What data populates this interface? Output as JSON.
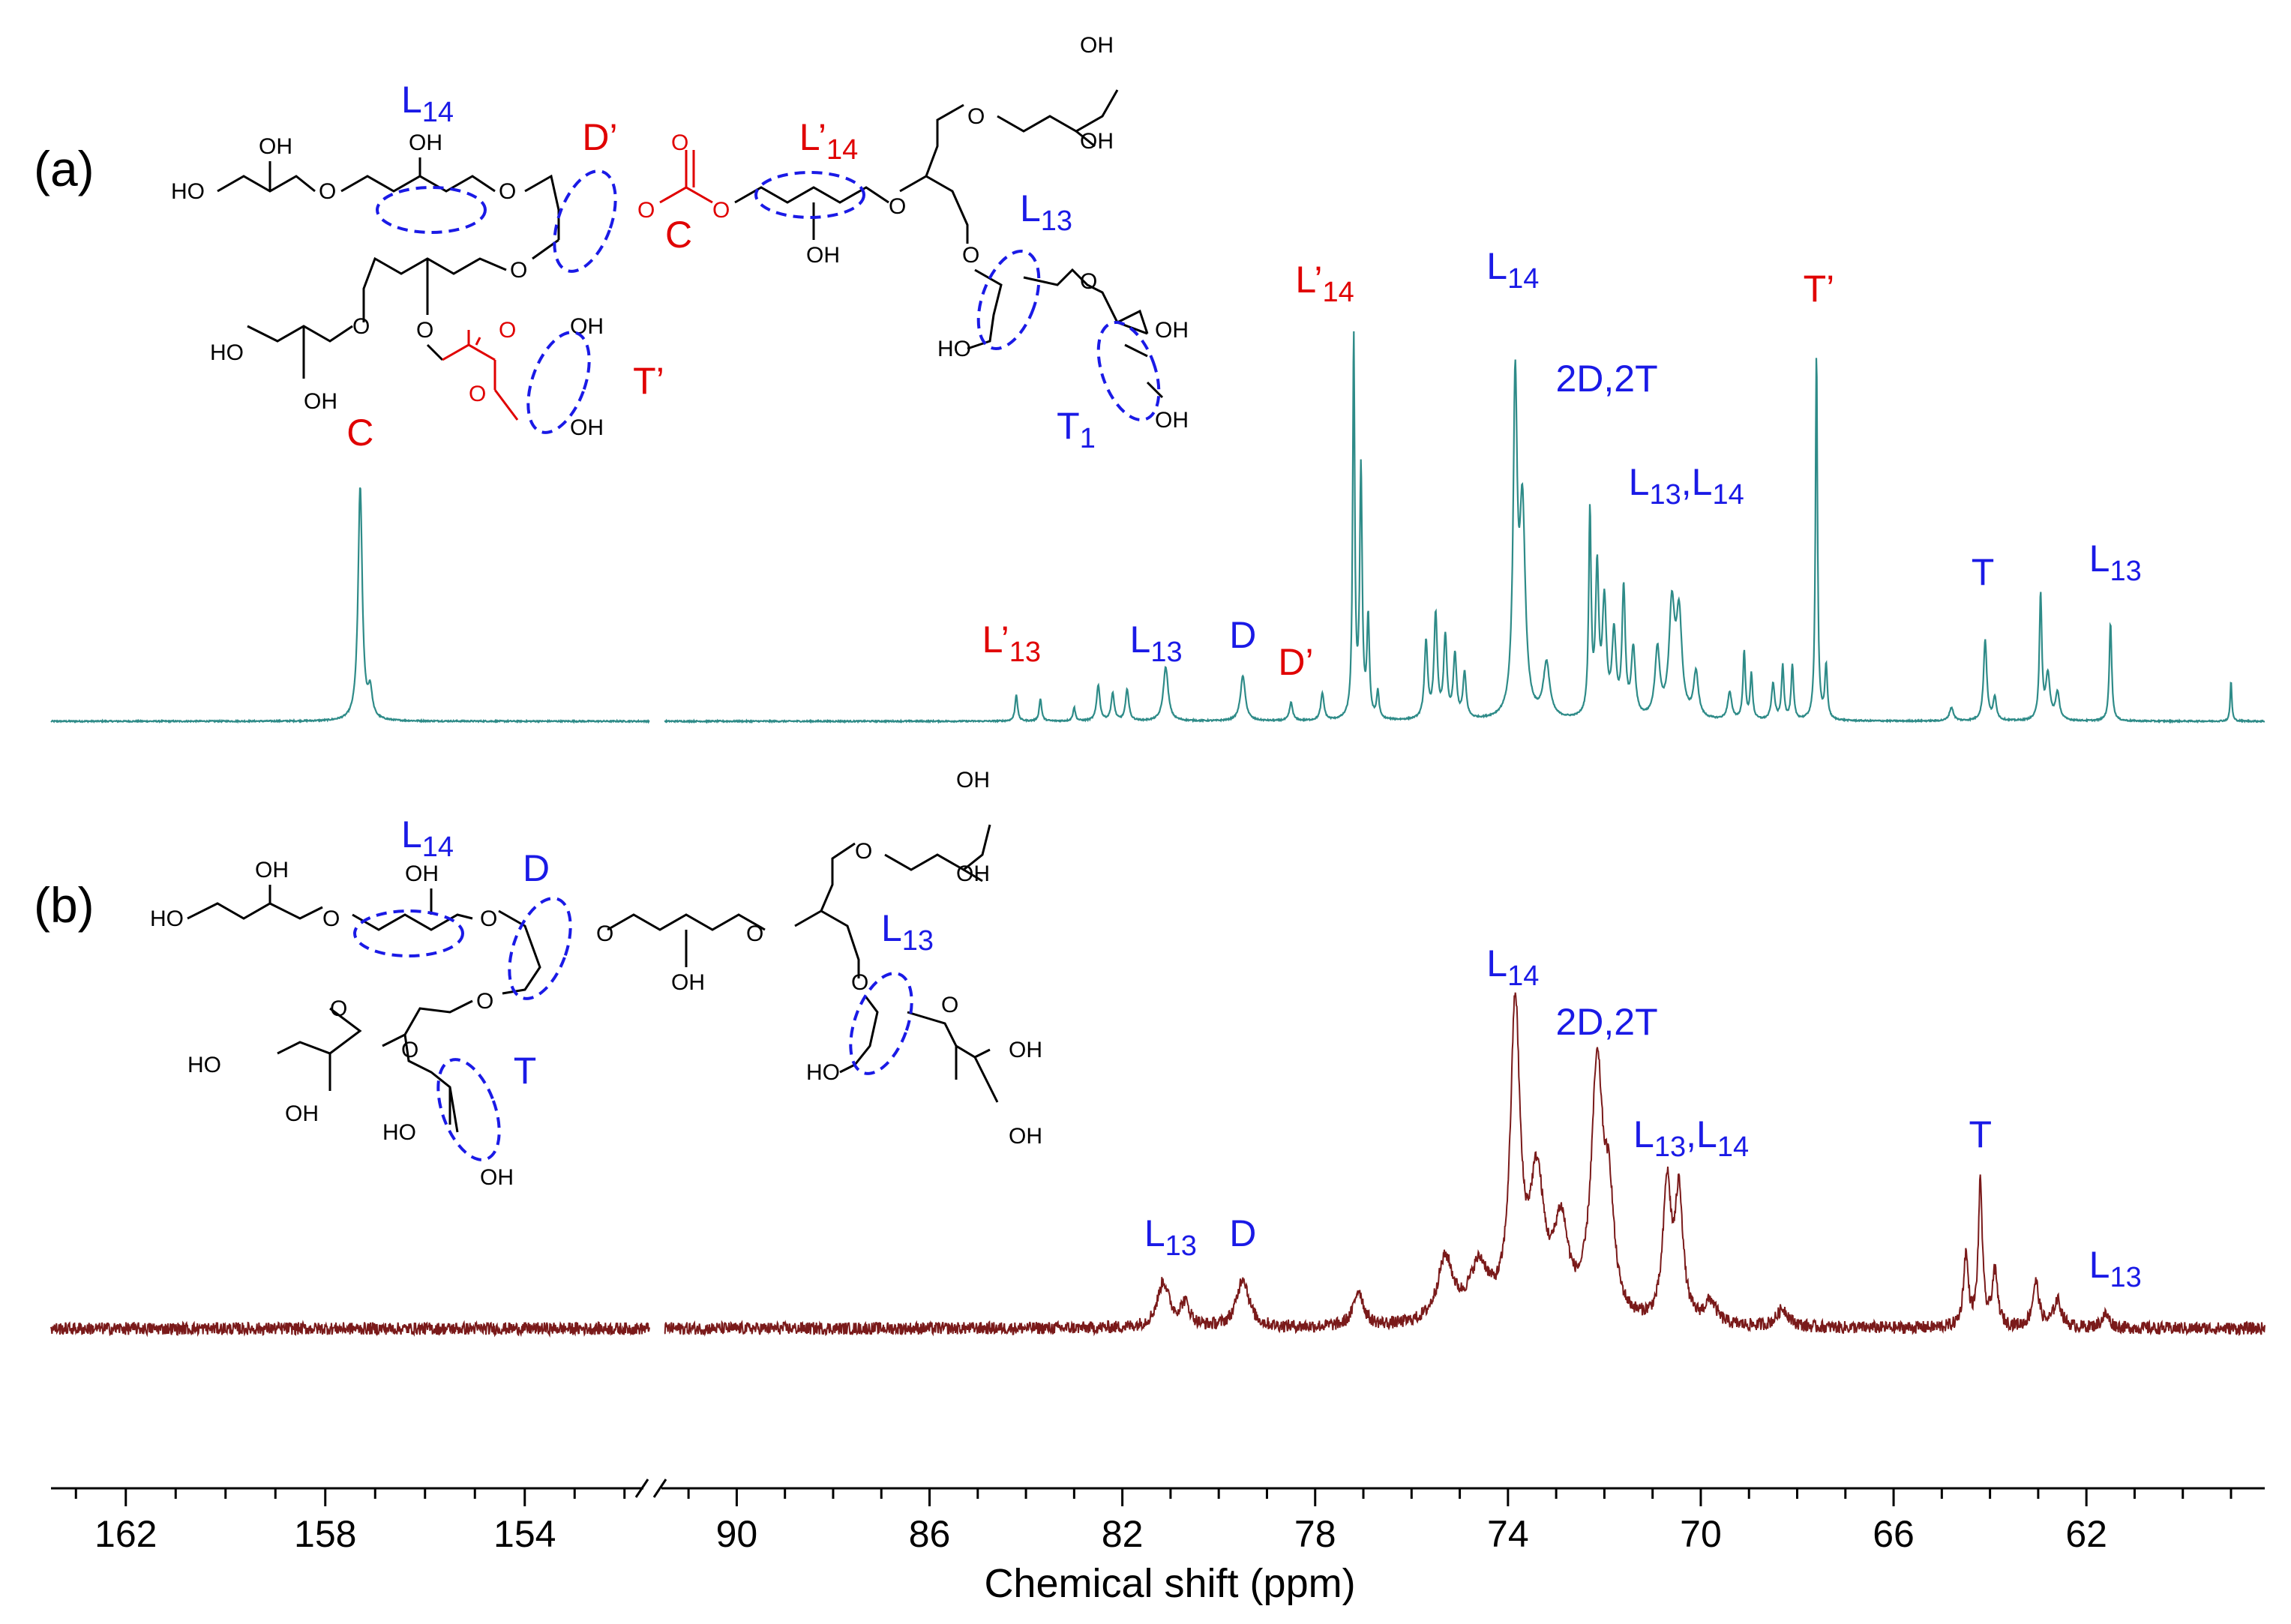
{
  "colors": {
    "spectrum_a": "#2e8b88",
    "spectrum_b": "#7a1a1a",
    "label_blue": "#1a1ae6",
    "label_red": "#e00000",
    "axis": "#000000"
  },
  "chart_data": {
    "type": "line",
    "xlabel": "Chemical shift (ppm)",
    "x_axis": {
      "segments": [
        {
          "range": [
            163.5,
            151.5
          ],
          "ticks": [
            162,
            158,
            154
          ]
        },
        {
          "range": [
            91.5,
            58.3
          ],
          "ticks": [
            90,
            86,
            82,
            78,
            74,
            70,
            66,
            62
          ]
        }
      ],
      "reversed": true,
      "broken": true
    },
    "panels": [
      {
        "id": "a",
        "label": "(a)",
        "series_color": "spectrum_a",
        "peaks": [
          {
            "ppm": 157.3,
            "height": 0.52,
            "width": 0.05
          },
          {
            "ppm": 157.1,
            "height": 0.06,
            "width": 0.05
          },
          {
            "ppm": 84.2,
            "height": 0.06,
            "width": 0.03
          },
          {
            "ppm": 83.7,
            "height": 0.05,
            "width": 0.03
          },
          {
            "ppm": 83.0,
            "height": 0.03,
            "width": 0.03
          },
          {
            "ppm": 82.5,
            "height": 0.08,
            "width": 0.04
          },
          {
            "ppm": 82.2,
            "height": 0.06,
            "width": 0.04
          },
          {
            "ppm": 81.9,
            "height": 0.07,
            "width": 0.04
          },
          {
            "ppm": 81.1,
            "height": 0.12,
            "width": 0.06
          },
          {
            "ppm": 79.5,
            "height": 0.1,
            "width": 0.06
          },
          {
            "ppm": 78.5,
            "height": 0.04,
            "width": 0.04
          },
          {
            "ppm": 77.85,
            "height": 0.06,
            "width": 0.04
          },
          {
            "ppm": 77.2,
            "height": 0.85,
            "width": 0.025
          },
          {
            "ppm": 77.05,
            "height": 0.55,
            "width": 0.03
          },
          {
            "ppm": 76.9,
            "height": 0.22,
            "width": 0.03
          },
          {
            "ppm": 76.7,
            "height": 0.06,
            "width": 0.03
          },
          {
            "ppm": 75.7,
            "height": 0.17,
            "width": 0.04
          },
          {
            "ppm": 75.5,
            "height": 0.23,
            "width": 0.04
          },
          {
            "ppm": 75.3,
            "height": 0.18,
            "width": 0.04
          },
          {
            "ppm": 75.1,
            "height": 0.14,
            "width": 0.04
          },
          {
            "ppm": 74.9,
            "height": 0.1,
            "width": 0.04
          },
          {
            "ppm": 73.85,
            "height": 0.72,
            "width": 0.05
          },
          {
            "ppm": 73.7,
            "height": 0.45,
            "width": 0.07
          },
          {
            "ppm": 73.2,
            "height": 0.12,
            "width": 0.08
          },
          {
            "ppm": 72.3,
            "height": 0.45,
            "width": 0.03
          },
          {
            "ppm": 72.15,
            "height": 0.32,
            "width": 0.04
          },
          {
            "ppm": 72.0,
            "height": 0.25,
            "width": 0.05
          },
          {
            "ppm": 71.8,
            "height": 0.18,
            "width": 0.05
          },
          {
            "ppm": 71.6,
            "height": 0.28,
            "width": 0.04
          },
          {
            "ppm": 71.4,
            "height": 0.15,
            "width": 0.05
          },
          {
            "ppm": 70.9,
            "height": 0.15,
            "width": 0.06
          },
          {
            "ppm": 70.6,
            "height": 0.24,
            "width": 0.07
          },
          {
            "ppm": 70.45,
            "height": 0.22,
            "width": 0.07
          },
          {
            "ppm": 70.1,
            "height": 0.1,
            "width": 0.06
          },
          {
            "ppm": 69.4,
            "height": 0.06,
            "width": 0.05
          },
          {
            "ppm": 69.1,
            "height": 0.15,
            "width": 0.03
          },
          {
            "ppm": 68.95,
            "height": 0.1,
            "width": 0.03
          },
          {
            "ppm": 68.5,
            "height": 0.08,
            "width": 0.04
          },
          {
            "ppm": 68.3,
            "height": 0.12,
            "width": 0.03
          },
          {
            "ppm": 68.1,
            "height": 0.12,
            "width": 0.03
          },
          {
            "ppm": 67.6,
            "height": 0.82,
            "width": 0.025
          },
          {
            "ppm": 67.4,
            "height": 0.12,
            "width": 0.03
          },
          {
            "ppm": 64.1,
            "height": 0.18,
            "width": 0.04
          },
          {
            "ppm": 63.9,
            "height": 0.05,
            "width": 0.04
          },
          {
            "ppm": 62.95,
            "height": 0.28,
            "width": 0.03
          },
          {
            "ppm": 62.8,
            "height": 0.1,
            "width": 0.05
          },
          {
            "ppm": 62.6,
            "height": 0.06,
            "width": 0.05
          },
          {
            "ppm": 61.5,
            "height": 0.22,
            "width": 0.03
          },
          {
            "ppm": 64.8,
            "height": 0.03,
            "width": 0.05
          },
          {
            "ppm": 59.0,
            "height": 0.09,
            "width": 0.02
          }
        ],
        "labels": [
          {
            "text": "C",
            "ppm": 157.3,
            "dy": 0.58,
            "color": "label_red"
          },
          {
            "text": "L'13",
            "base": "L’",
            "sub": "13",
            "ppm": 84.3,
            "dy": 0.12,
            "color": "label_red"
          },
          {
            "text": "L13",
            "base": "L",
            "sub": "13",
            "ppm": 81.3,
            "dy": 0.12,
            "color": "label_blue"
          },
          {
            "text": "D",
            "ppm": 79.5,
            "dy": 0.13,
            "color": "label_blue"
          },
          {
            "text": "D'",
            "base": "D’",
            "ppm": 78.4,
            "dy": 0.07,
            "color": "label_red"
          },
          {
            "text": "L'14",
            "base": "L’",
            "sub": "14",
            "ppm": 77.8,
            "dy": 0.92,
            "color": "label_red"
          },
          {
            "text": "L14",
            "base": "L",
            "sub": "14",
            "ppm": 73.9,
            "dy": 0.95,
            "color": "label_blue"
          },
          {
            "text": "2D,2T",
            "ppm": 71.95,
            "dy": 0.7,
            "color": "label_blue"
          },
          {
            "text": "L13,L14",
            "base": "L",
            "sub": "13",
            "mid": ",L",
            "sub2": "14",
            "ppm": 70.3,
            "dy": 0.47,
            "color": "label_blue"
          },
          {
            "text": "T'",
            "base": "T’",
            "ppm": 67.55,
            "dy": 0.9,
            "color": "label_red"
          },
          {
            "text": "T",
            "ppm": 64.15,
            "dy": 0.27,
            "color": "label_blue"
          },
          {
            "text": "L13",
            "base": "L",
            "sub": "13",
            "ppm": 61.4,
            "dy": 0.3,
            "color": "label_blue"
          }
        ]
      },
      {
        "id": "b",
        "label": "(b)",
        "series_color": "spectrum_b",
        "noise": 0.014,
        "peaks": [
          {
            "ppm": 81.15,
            "height": 0.1,
            "width": 0.15
          },
          {
            "ppm": 80.7,
            "height": 0.05,
            "width": 0.12
          },
          {
            "ppm": 79.5,
            "height": 0.11,
            "width": 0.15
          },
          {
            "ppm": 77.1,
            "height": 0.08,
            "width": 0.12
          },
          {
            "ppm": 75.3,
            "height": 0.14,
            "width": 0.2
          },
          {
            "ppm": 74.6,
            "height": 0.12,
            "width": 0.25
          },
          {
            "ppm": 73.85,
            "height": 0.68,
            "width": 0.12
          },
          {
            "ppm": 73.4,
            "height": 0.3,
            "width": 0.18
          },
          {
            "ppm": 72.9,
            "height": 0.2,
            "width": 0.18
          },
          {
            "ppm": 72.15,
            "height": 0.55,
            "width": 0.15
          },
          {
            "ppm": 71.9,
            "height": 0.22,
            "width": 0.12
          },
          {
            "ppm": 70.7,
            "height": 0.3,
            "width": 0.1
          },
          {
            "ppm": 70.45,
            "height": 0.28,
            "width": 0.1
          },
          {
            "ppm": 69.8,
            "height": 0.05,
            "width": 0.15
          },
          {
            "ppm": 68.3,
            "height": 0.04,
            "width": 0.15
          },
          {
            "ppm": 64.5,
            "height": 0.16,
            "width": 0.06
          },
          {
            "ppm": 64.2,
            "height": 0.32,
            "width": 0.05
          },
          {
            "ppm": 63.9,
            "height": 0.12,
            "width": 0.07
          },
          {
            "ppm": 63.05,
            "height": 0.1,
            "width": 0.08
          },
          {
            "ppm": 62.6,
            "height": 0.06,
            "width": 0.1
          },
          {
            "ppm": 61.6,
            "height": 0.03,
            "width": 0.1
          }
        ],
        "labels": [
          {
            "text": "L13",
            "base": "L",
            "sub": "13",
            "ppm": 81.0,
            "dy": 0.15,
            "color": "label_blue"
          },
          {
            "text": "D",
            "ppm": 79.5,
            "dy": 0.15,
            "color": "label_blue"
          },
          {
            "text": "L14",
            "base": "L",
            "sub": "14",
            "ppm": 73.9,
            "dy": 0.75,
            "color": "label_blue"
          },
          {
            "text": "2D,2T",
            "ppm": 71.95,
            "dy": 0.62,
            "color": "label_blue"
          },
          {
            "text": "L13,L14",
            "base": "L",
            "sub": "13",
            "mid": ",L",
            "sub2": "14",
            "ppm": 70.2,
            "dy": 0.37,
            "color": "label_blue"
          },
          {
            "text": "T",
            "ppm": 64.2,
            "dy": 0.37,
            "color": "label_blue"
          },
          {
            "text": "L13",
            "base": "L",
            "sub": "13",
            "ppm": 61.4,
            "dy": 0.08,
            "color": "label_blue"
          }
        ]
      }
    ]
  },
  "structures": {
    "a": {
      "atoms_black": [
        "HO",
        "OH",
        "OH",
        "O",
        "O",
        "O",
        "O",
        "O",
        "O",
        "OH",
        "OH",
        "O",
        "O",
        "OH",
        "OH",
        "HO",
        "HO",
        "OH",
        "O",
        "OH",
        "OH",
        "O",
        "OH",
        "OH"
      ],
      "atoms_red": [
        "O",
        "O",
        "O",
        "O"
      ],
      "labels": [
        {
          "text": "L14",
          "base": "L",
          "sub": "14",
          "color": "label_blue"
        },
        {
          "text": "D'",
          "base": "D’",
          "color": "label_red"
        },
        {
          "text": "C",
          "color": "label_red"
        },
        {
          "text": "L'14",
          "base": "L’",
          "sub": "14",
          "color": "label_red"
        },
        {
          "text": "L13",
          "base": "L",
          "sub": "13",
          "color": "label_blue"
        },
        {
          "text": "T'",
          "base": "T’",
          "color": "label_red"
        },
        {
          "text": "T1",
          "base": "T",
          "sub": "1",
          "color": "label_blue"
        }
      ]
    },
    "b": {
      "labels": [
        {
          "text": "L14",
          "base": "L",
          "sub": "14",
          "color": "label_blue"
        },
        {
          "text": "D",
          "color": "label_blue"
        },
        {
          "text": "L13",
          "base": "L",
          "sub": "13",
          "color": "label_blue"
        },
        {
          "text": "T",
          "color": "label_blue"
        }
      ]
    }
  }
}
